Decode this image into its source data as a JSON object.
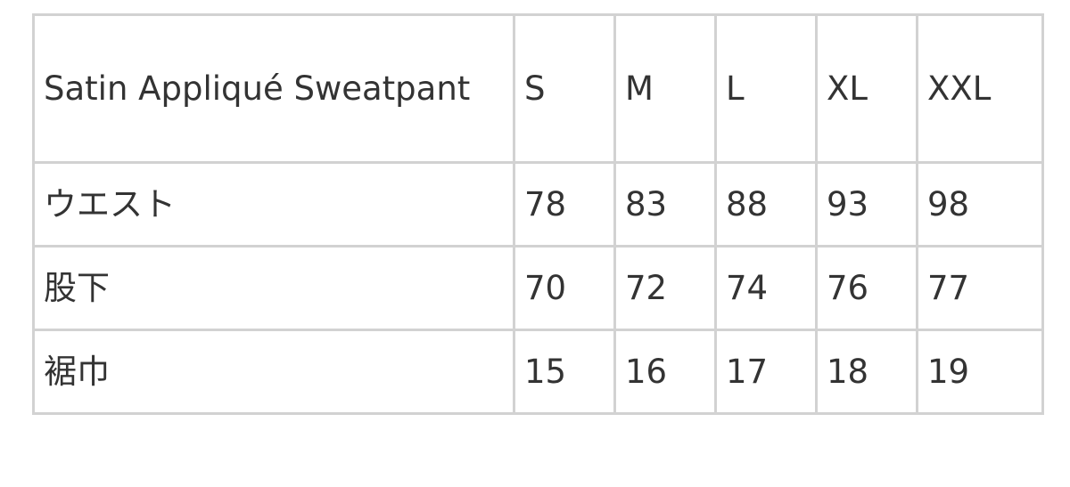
{
  "table": {
    "header": [
      "Satin Appliqué Sweatpant",
      "S",
      "M",
      "L",
      "XL",
      "XXL"
    ],
    "rows": [
      [
        "ウエスト",
        "78",
        "83",
        "88",
        "93",
        "98"
      ],
      [
        "股下",
        "70",
        "72",
        "74",
        "76",
        "77"
      ],
      [
        "裾巾",
        "15",
        "16",
        "17",
        "18",
        "19"
      ]
    ]
  }
}
